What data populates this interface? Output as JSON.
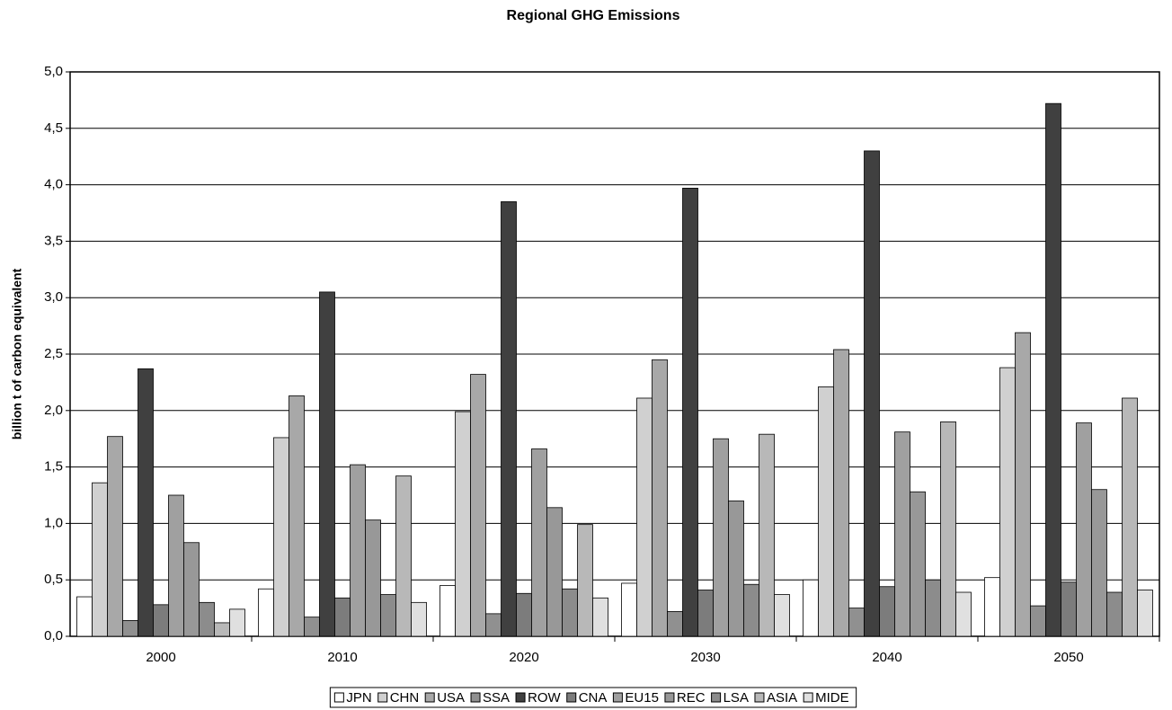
{
  "chart_data": {
    "type": "bar",
    "title": "Regional GHG Emissions",
    "y_label": "billion t of carbon equivalent",
    "categories": [
      "2000",
      "2010",
      "2020",
      "2030",
      "2040",
      "2050"
    ],
    "series": [
      {
        "name": "JPN",
        "color": "#ffffff",
        "values": [
          0.35,
          0.42,
          0.45,
          0.47,
          0.5,
          0.52
        ]
      },
      {
        "name": "CHN",
        "color": "#d0d0d0",
        "values": [
          1.36,
          1.76,
          1.99,
          2.11,
          2.21,
          2.38
        ]
      },
      {
        "name": "USA",
        "color": "#a8a8a8",
        "values": [
          1.77,
          2.13,
          2.32,
          2.45,
          2.54,
          2.69
        ]
      },
      {
        "name": "SSA",
        "color": "#909090",
        "values": [
          0.14,
          0.17,
          0.2,
          0.22,
          0.25,
          0.27
        ]
      },
      {
        "name": "ROW",
        "color": "#404040",
        "values": [
          2.37,
          3.05,
          3.85,
          3.97,
          4.3,
          4.72
        ]
      },
      {
        "name": "CNA",
        "color": "#7c7c7c",
        "values": [
          0.28,
          0.34,
          0.38,
          0.41,
          0.44,
          0.48
        ]
      },
      {
        "name": "EU15",
        "color": "#a0a0a0",
        "values": [
          1.25,
          1.52,
          1.66,
          1.75,
          1.81,
          1.89
        ]
      },
      {
        "name": "REC",
        "color": "#989898",
        "values": [
          0.83,
          1.03,
          1.14,
          1.2,
          1.28,
          1.3
        ]
      },
      {
        "name": "LSA",
        "color": "#8c8c8c",
        "values": [
          0.3,
          0.37,
          0.42,
          0.46,
          0.5,
          0.39
        ]
      },
      {
        "name": "ASIA",
        "color": "#b8b8b8",
        "values": [
          0.12,
          1.42,
          0.99,
          1.79,
          1.9,
          2.11
        ]
      },
      {
        "name": "MIDE",
        "color": "#e0e0e0",
        "values": [
          0.24,
          0.3,
          0.34,
          0.37,
          0.39,
          0.41
        ]
      }
    ],
    "ylim": [
      0,
      5
    ],
    "yticks": [
      {
        "value": 0,
        "label": "0,0"
      },
      {
        "value": 0.5,
        "label": "0,5"
      },
      {
        "value": 1,
        "label": "1,0"
      },
      {
        "value": 1.5,
        "label": "1,5"
      },
      {
        "value": 2,
        "label": "2,0"
      },
      {
        "value": 2.5,
        "label": "2,5"
      },
      {
        "value": 3,
        "label": "3,0"
      },
      {
        "value": 3.5,
        "label": "3,5"
      },
      {
        "value": 4,
        "label": "4,0"
      },
      {
        "value": 4.5,
        "label": "4,5"
      },
      {
        "value": 5,
        "label": "5,0"
      }
    ],
    "grid": true,
    "legend": "bottom"
  }
}
